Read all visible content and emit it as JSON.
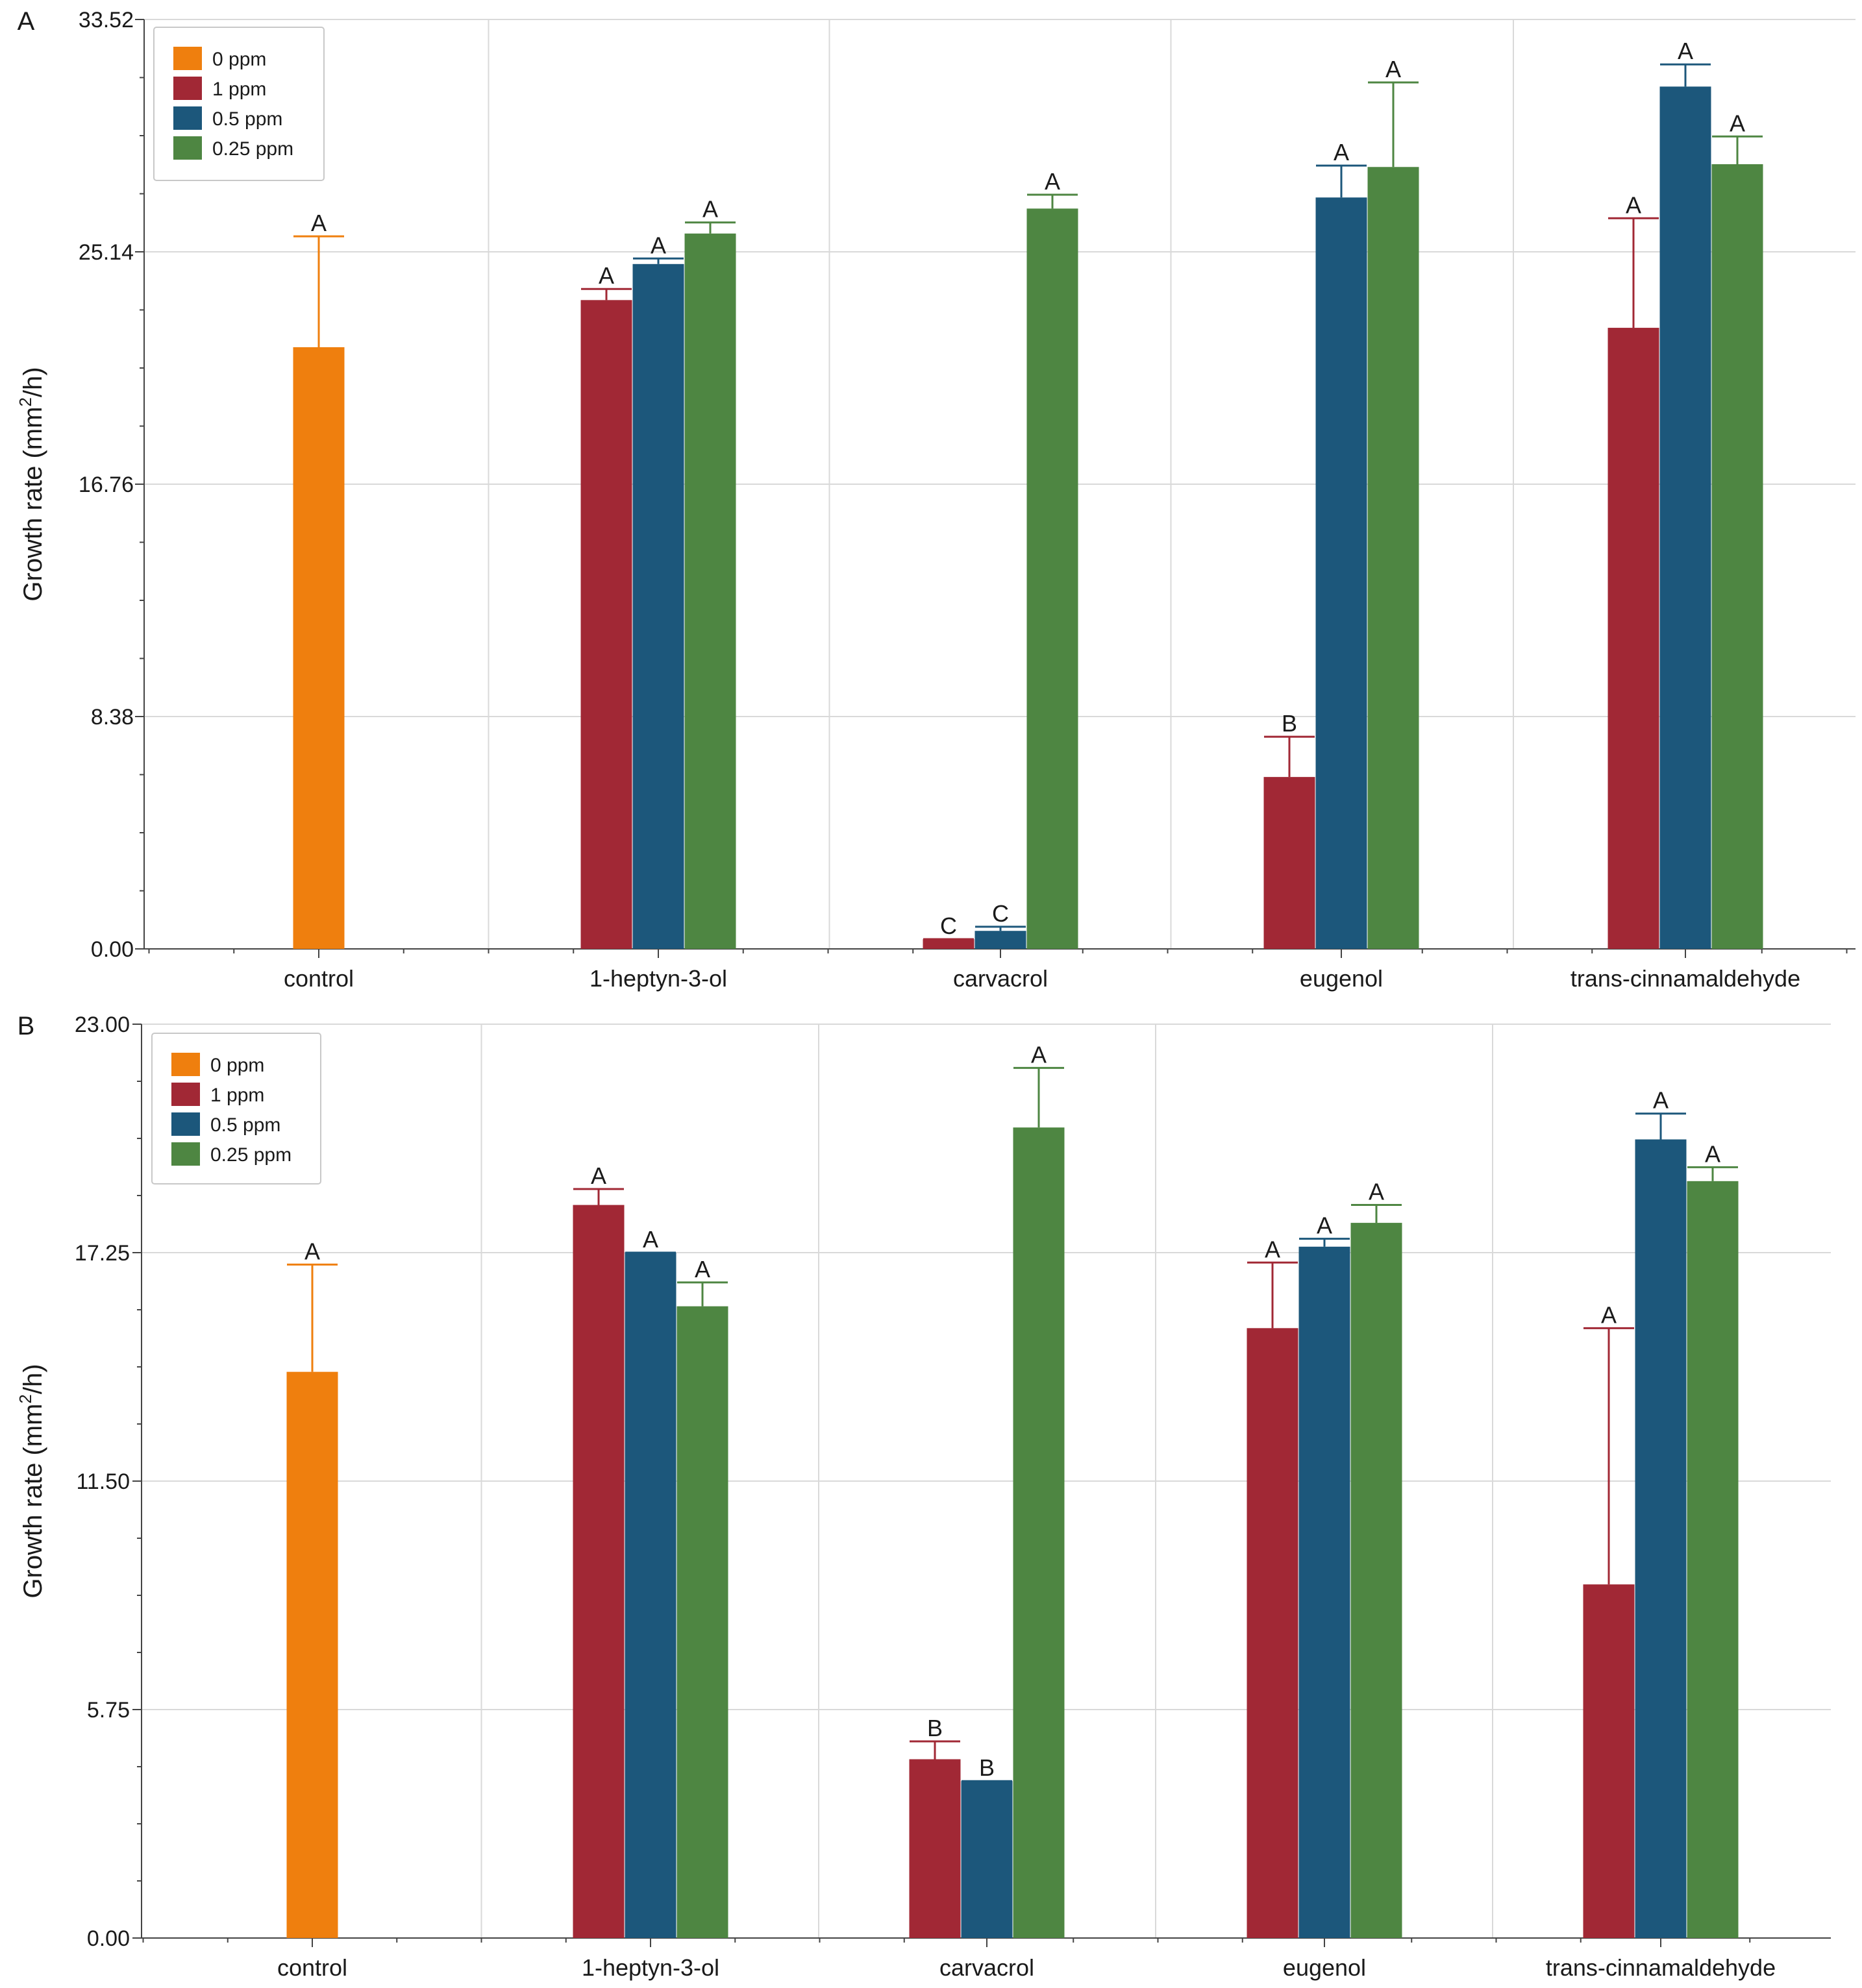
{
  "colors": {
    "0 ppm": "#ef7f0e",
    "1 ppm": "#a12835",
    "0.5 ppm": "#1c577b",
    "0.25 ppm": "#4e8642",
    "grid": "#d9d9d9",
    "axis": "#444444"
  },
  "chart_data": [
    {
      "panel": "A",
      "type": "bar",
      "ylabel_main": "Growth rate (mm",
      "ylabel_sup": "2",
      "ylabel_end": "/h)",
      "ylim": [
        0,
        33.52
      ],
      "yticks": [
        "0.00",
        "8.38",
        "16.76",
        "25.14",
        "33.52"
      ],
      "categories": [
        "control",
        "1-heptyn-3-ol",
        "carvacrol",
        "eugenol",
        "trans-cinnamaldehyde"
      ],
      "legend": [
        "0 ppm",
        "1 ppm",
        "0.5 ppm",
        "0.25 ppm"
      ],
      "bars": [
        {
          "category": "control",
          "series": "0 ppm",
          "value": 21.7,
          "err": 4.0,
          "sig": "A"
        },
        {
          "category": "1-heptyn-3-ol",
          "series": "1 ppm",
          "value": 23.4,
          "err": 0.4,
          "sig": "A"
        },
        {
          "category": "1-heptyn-3-ol",
          "series": "0.5 ppm",
          "value": 24.7,
          "err": 0.2,
          "sig": "A"
        },
        {
          "category": "1-heptyn-3-ol",
          "series": "0.25 ppm",
          "value": 25.8,
          "err": 0.4,
          "sig": "A"
        },
        {
          "category": "carvacrol",
          "series": "1 ppm",
          "value": 0.35,
          "err": 0.0,
          "sig": "C"
        },
        {
          "category": "carvacrol",
          "series": "0.5 ppm",
          "value": 0.65,
          "err": 0.15,
          "sig": "C"
        },
        {
          "category": "carvacrol",
          "series": "0.25 ppm",
          "value": 26.7,
          "err": 0.5,
          "sig": "A"
        },
        {
          "category": "eugenol",
          "series": "1 ppm",
          "value": 6.2,
          "err": 1.45,
          "sig": "B"
        },
        {
          "category": "eugenol",
          "series": "0.5 ppm",
          "value": 27.1,
          "err": 1.15,
          "sig": "A"
        },
        {
          "category": "eugenol",
          "series": "0.25 ppm",
          "value": 28.2,
          "err": 3.05,
          "sig": "A"
        },
        {
          "category": "trans-cinnamaldehyde",
          "series": "1 ppm",
          "value": 22.4,
          "err": 3.95,
          "sig": "A"
        },
        {
          "category": "trans-cinnamaldehyde",
          "series": "0.5 ppm",
          "value": 31.1,
          "err": 0.8,
          "sig": "A"
        },
        {
          "category": "trans-cinnamaldehyde",
          "series": "0.25 ppm",
          "value": 28.3,
          "err": 1.0,
          "sig": "A"
        }
      ]
    },
    {
      "panel": "B",
      "type": "bar",
      "ylabel_main": "Growth rate (mm",
      "ylabel_sup": "2",
      "ylabel_end": "/h)",
      "ylim": [
        0,
        23.0
      ],
      "yticks": [
        "0.00",
        "5.75",
        "11.50",
        "17.25",
        "23.00"
      ],
      "categories": [
        "control",
        "1-heptyn-3-ol",
        "carvacrol",
        "eugenol",
        "trans-cinnamaldehyde"
      ],
      "legend": [
        "0 ppm",
        "1 ppm",
        "0.5 ppm",
        "0.25 ppm"
      ],
      "bars": [
        {
          "category": "control",
          "series": "0 ppm",
          "value": 14.25,
          "err": 2.7,
          "sig": "A"
        },
        {
          "category": "1-heptyn-3-ol",
          "series": "1 ppm",
          "value": 18.45,
          "err": 0.4,
          "sig": "A"
        },
        {
          "category": "1-heptyn-3-ol",
          "series": "0.5 ppm",
          "value": 17.25,
          "err": 0.0,
          "sig": "A"
        },
        {
          "category": "1-heptyn-3-ol",
          "series": "0.25 ppm",
          "value": 15.9,
          "err": 0.6,
          "sig": "A"
        },
        {
          "category": "carvacrol",
          "series": "1 ppm",
          "value": 4.5,
          "err": 0.45,
          "sig": "B"
        },
        {
          "category": "carvacrol",
          "series": "0.5 ppm",
          "value": 3.95,
          "err": 0.0,
          "sig": "B"
        },
        {
          "category": "carvacrol",
          "series": "0.25 ppm",
          "value": 20.4,
          "err": 1.5,
          "sig": "A"
        },
        {
          "category": "eugenol",
          "series": "1 ppm",
          "value": 15.35,
          "err": 1.65,
          "sig": "A"
        },
        {
          "category": "eugenol",
          "series": "0.5 ppm",
          "value": 17.4,
          "err": 0.2,
          "sig": "A"
        },
        {
          "category": "eugenol",
          "series": "0.25 ppm",
          "value": 18.0,
          "err": 0.45,
          "sig": "A"
        },
        {
          "category": "trans-cinnamaldehyde",
          "series": "1 ppm",
          "value": 8.9,
          "err": 6.45,
          "sig": "A"
        },
        {
          "category": "trans-cinnamaldehyde",
          "series": "0.5 ppm",
          "value": 20.1,
          "err": 0.65,
          "sig": "A"
        },
        {
          "category": "trans-cinnamaldehyde",
          "series": "0.25 ppm",
          "value": 19.05,
          "err": 0.35,
          "sig": "A"
        }
      ]
    }
  ]
}
